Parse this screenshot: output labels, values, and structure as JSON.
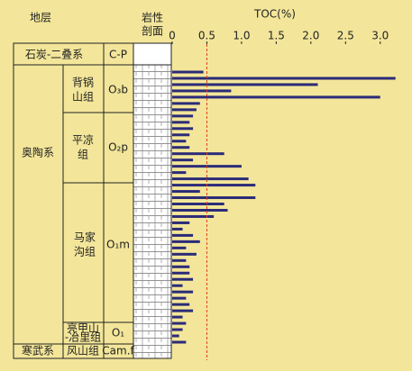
{
  "chart_data": {
    "type": "bar",
    "orientation": "horizontal",
    "title": "TOC(%)",
    "values": [
      0.45,
      3.22,
      2.1,
      0.85,
      3.0,
      0.4,
      0.35,
      0.3,
      0.25,
      0.3,
      0.25,
      0.2,
      0.25,
      0.75,
      0.3,
      1.0,
      0.2,
      1.1,
      1.2,
      0.4,
      1.2,
      0.75,
      0.8,
      0.6,
      0.25,
      0.15,
      0.3,
      0.4,
      0.2,
      0.35,
      0.2,
      0.25,
      0.25,
      0.3,
      0.15,
      0.3,
      0.2,
      0.25,
      0.3,
      0.15,
      0.2,
      0.15,
      0.1,
      0.2
    ],
    "color": "#2b2b78",
    "xlim": [
      0,
      3.25
    ],
    "xticks": [
      0,
      0.5,
      {
        "value": 1,
        "label": "1.0"
      },
      1.5,
      {
        "value": 2,
        "label": "2.0"
      },
      2.5,
      {
        "value": 3,
        "label": "3.0"
      }
    ],
    "reference_line": {
      "value": 0.5,
      "color": "#e0401c"
    }
  },
  "stratigraphy": {
    "header": "地层",
    "lithology_header": [
      "岩性",
      "剖面"
    ],
    "systems": [
      {
        "name": "石炭-二叠系",
        "code": "C-P"
      },
      {
        "name": "奥陶系"
      },
      {
        "name": "寒武系"
      }
    ],
    "formations": [
      {
        "name": [
          "背锅",
          "山组"
        ],
        "code": "O₃b"
      },
      {
        "name": [
          "平凉",
          "组"
        ],
        "code": "O₂p"
      },
      {
        "name": [
          "马家",
          "沟组"
        ],
        "code": "O₁m"
      },
      {
        "name": [
          "亮甲山",
          "-冶里组"
        ],
        "code": "O₁"
      },
      {
        "name": [
          "风山组"
        ],
        "code": "Cam.f"
      }
    ]
  }
}
